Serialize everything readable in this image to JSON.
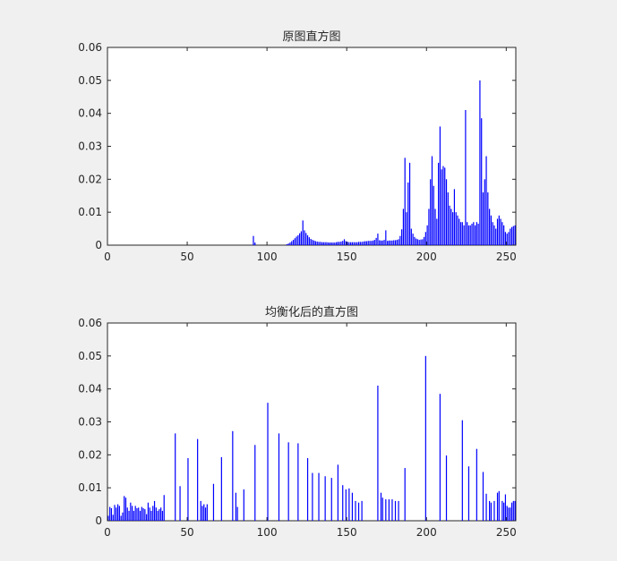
{
  "window": {
    "background": "#f0f0f0"
  },
  "colors": {
    "bar": "#0000ff",
    "axis": "#262626",
    "plot_bg": "#ffffff"
  },
  "chart_data": [
    {
      "type": "bar",
      "title": "原图直方图",
      "xlim": [
        0,
        256
      ],
      "ylim": [
        0,
        0.06
      ],
      "xticks": [
        0,
        50,
        100,
        150,
        200,
        250
      ],
      "xtick_labels": [
        "0",
        "50",
        "100",
        "150",
        "200",
        "250"
      ],
      "yticks": [
        0,
        0.01,
        0.02,
        0.03,
        0.04,
        0.05,
        0.06
      ],
      "ytick_labels": [
        "0",
        "0.01",
        "0.02",
        "0.03",
        "0.04",
        "0.05",
        "0.06"
      ],
      "grid": false,
      "x": [
        91,
        92,
        112,
        113,
        114,
        115,
        116,
        117,
        118,
        119,
        120,
        121,
        122,
        123,
        124,
        125,
        126,
        127,
        128,
        129,
        130,
        131,
        132,
        133,
        134,
        135,
        136,
        137,
        138,
        139,
        140,
        141,
        142,
        143,
        144,
        145,
        146,
        147,
        148,
        149,
        150,
        151,
        152,
        153,
        154,
        155,
        156,
        157,
        158,
        159,
        160,
        161,
        162,
        163,
        164,
        165,
        166,
        167,
        168,
        169,
        170,
        171,
        172,
        173,
        174,
        175,
        176,
        177,
        178,
        179,
        180,
        181,
        182,
        183,
        184,
        185,
        186,
        187,
        188,
        189,
        190,
        191,
        192,
        193,
        194,
        195,
        196,
        197,
        198,
        199,
        200,
        201,
        202,
        203,
        204,
        205,
        206,
        207,
        208,
        209,
        210,
        211,
        212,
        213,
        214,
        215,
        216,
        217,
        218,
        219,
        220,
        221,
        222,
        223,
        224,
        225,
        226,
        227,
        228,
        229,
        230,
        231,
        232,
        233,
        234,
        235,
        236,
        237,
        238,
        239,
        240,
        241,
        242,
        243,
        244,
        245,
        246,
        247,
        248,
        249,
        250,
        251,
        252,
        253,
        254,
        255
      ],
      "values": [
        0.0028,
        0.0008,
        0.0003,
        0.0005,
        0.0008,
        0.0012,
        0.0016,
        0.0021,
        0.0026,
        0.003,
        0.0036,
        0.0042,
        0.0075,
        0.0045,
        0.0037,
        0.003,
        0.0024,
        0.0019,
        0.0016,
        0.0014,
        0.0012,
        0.0011,
        0.001,
        0.001,
        0.0009,
        0.0009,
        0.0009,
        0.0009,
        0.0008,
        0.0008,
        0.0008,
        0.0008,
        0.0008,
        0.0009,
        0.001,
        0.001,
        0.0011,
        0.0013,
        0.0018,
        0.0012,
        0.001,
        0.0009,
        0.0009,
        0.0009,
        0.0009,
        0.0009,
        0.0009,
        0.001,
        0.001,
        0.001,
        0.0011,
        0.0012,
        0.0012,
        0.0013,
        0.0013,
        0.0013,
        0.0014,
        0.0016,
        0.0022,
        0.0035,
        0.0015,
        0.0014,
        0.0014,
        0.0016,
        0.0045,
        0.0013,
        0.0014,
        0.0014,
        0.0014,
        0.0015,
        0.0015,
        0.0016,
        0.0018,
        0.0028,
        0.0048,
        0.011,
        0.0265,
        0.01,
        0.019,
        0.025,
        0.005,
        0.0035,
        0.0025,
        0.002,
        0.0018,
        0.0016,
        0.0017,
        0.0018,
        0.0025,
        0.004,
        0.006,
        0.011,
        0.02,
        0.027,
        0.018,
        0.011,
        0.008,
        0.025,
        0.036,
        0.023,
        0.024,
        0.0235,
        0.02,
        0.016,
        0.012,
        0.011,
        0.01,
        0.017,
        0.01,
        0.009,
        0.008,
        0.007,
        0.007,
        0.006,
        0.041,
        0.007,
        0.006,
        0.006,
        0.0065,
        0.007,
        0.006,
        0.007,
        0.0065,
        0.05,
        0.0385,
        0.016,
        0.02,
        0.027,
        0.016,
        0.011,
        0.009,
        0.007,
        0.006,
        0.005,
        0.008,
        0.009,
        0.008,
        0.007,
        0.006,
        0.004,
        0.0035,
        0.004,
        0.005,
        0.0055,
        0.0058,
        0.006
      ]
    },
    {
      "type": "bar",
      "title": "均衡化后的直方图",
      "xlim": [
        0,
        256
      ],
      "ylim": [
        0,
        0.06
      ],
      "xticks": [
        0,
        50,
        100,
        150,
        200,
        250
      ],
      "xtick_labels": [
        "0",
        "50",
        "100",
        "150",
        "200",
        "250"
      ],
      "yticks": [
        0,
        0.01,
        0.02,
        0.03,
        0.04,
        0.05,
        0.06
      ],
      "ytick_labels": [
        "0",
        "0.01",
        "0.02",
        "0.03",
        "0.04",
        "0.05",
        "0.06"
      ],
      "grid": false,
      "x": [
        0,
        1,
        2,
        3,
        4,
        5,
        6,
        7,
        8,
        9,
        10,
        11,
        12,
        13,
        14,
        15,
        16,
        17,
        18,
        19,
        20,
        21,
        22,
        23,
        24,
        25,
        26,
        27,
        28,
        29,
        30,
        31,
        32,
        33,
        34,
        35,
        42,
        45,
        50,
        56,
        58,
        59,
        60,
        61,
        62,
        66,
        71,
        78,
        80,
        81,
        85,
        92,
        100,
        107,
        113,
        119,
        125,
        128,
        132,
        136,
        140,
        144,
        147,
        149,
        151,
        153,
        155,
        157,
        159,
        169,
        171,
        172,
        174,
        176,
        178,
        180,
        182,
        186,
        199,
        208,
        212,
        222,
        226,
        231,
        235,
        237,
        239,
        240,
        242,
        244,
        245,
        247,
        248,
        249,
        250,
        251,
        252,
        253,
        254,
        255
      ],
      "values": [
        0.0015,
        0.0042,
        0.0038,
        0.0018,
        0.0048,
        0.004,
        0.005,
        0.0045,
        0.0015,
        0.0025,
        0.0075,
        0.007,
        0.004,
        0.003,
        0.0055,
        0.0045,
        0.003,
        0.0045,
        0.0038,
        0.004,
        0.003,
        0.0042,
        0.0038,
        0.0035,
        0.002,
        0.0055,
        0.004,
        0.003,
        0.0045,
        0.006,
        0.004,
        0.003,
        0.0035,
        0.004,
        0.003,
        0.0078,
        0.0265,
        0.0105,
        0.019,
        0.0248,
        0.006,
        0.0045,
        0.005,
        0.004,
        0.005,
        0.0112,
        0.0193,
        0.0272,
        0.0085,
        0.0042,
        0.0095,
        0.023,
        0.0358,
        0.0265,
        0.0238,
        0.0235,
        0.019,
        0.0145,
        0.0145,
        0.0135,
        0.013,
        0.017,
        0.0108,
        0.0095,
        0.0098,
        0.0085,
        0.006,
        0.0055,
        0.006,
        0.041,
        0.0085,
        0.007,
        0.0065,
        0.0065,
        0.0065,
        0.006,
        0.006,
        0.016,
        0.05,
        0.0385,
        0.0198,
        0.0305,
        0.0165,
        0.0218,
        0.0148,
        0.0082,
        0.006,
        0.0055,
        0.006,
        0.0085,
        0.009,
        0.006,
        0.0055,
        0.008,
        0.0045,
        0.004,
        0.004,
        0.0055,
        0.006,
        0.006
      ]
    }
  ]
}
